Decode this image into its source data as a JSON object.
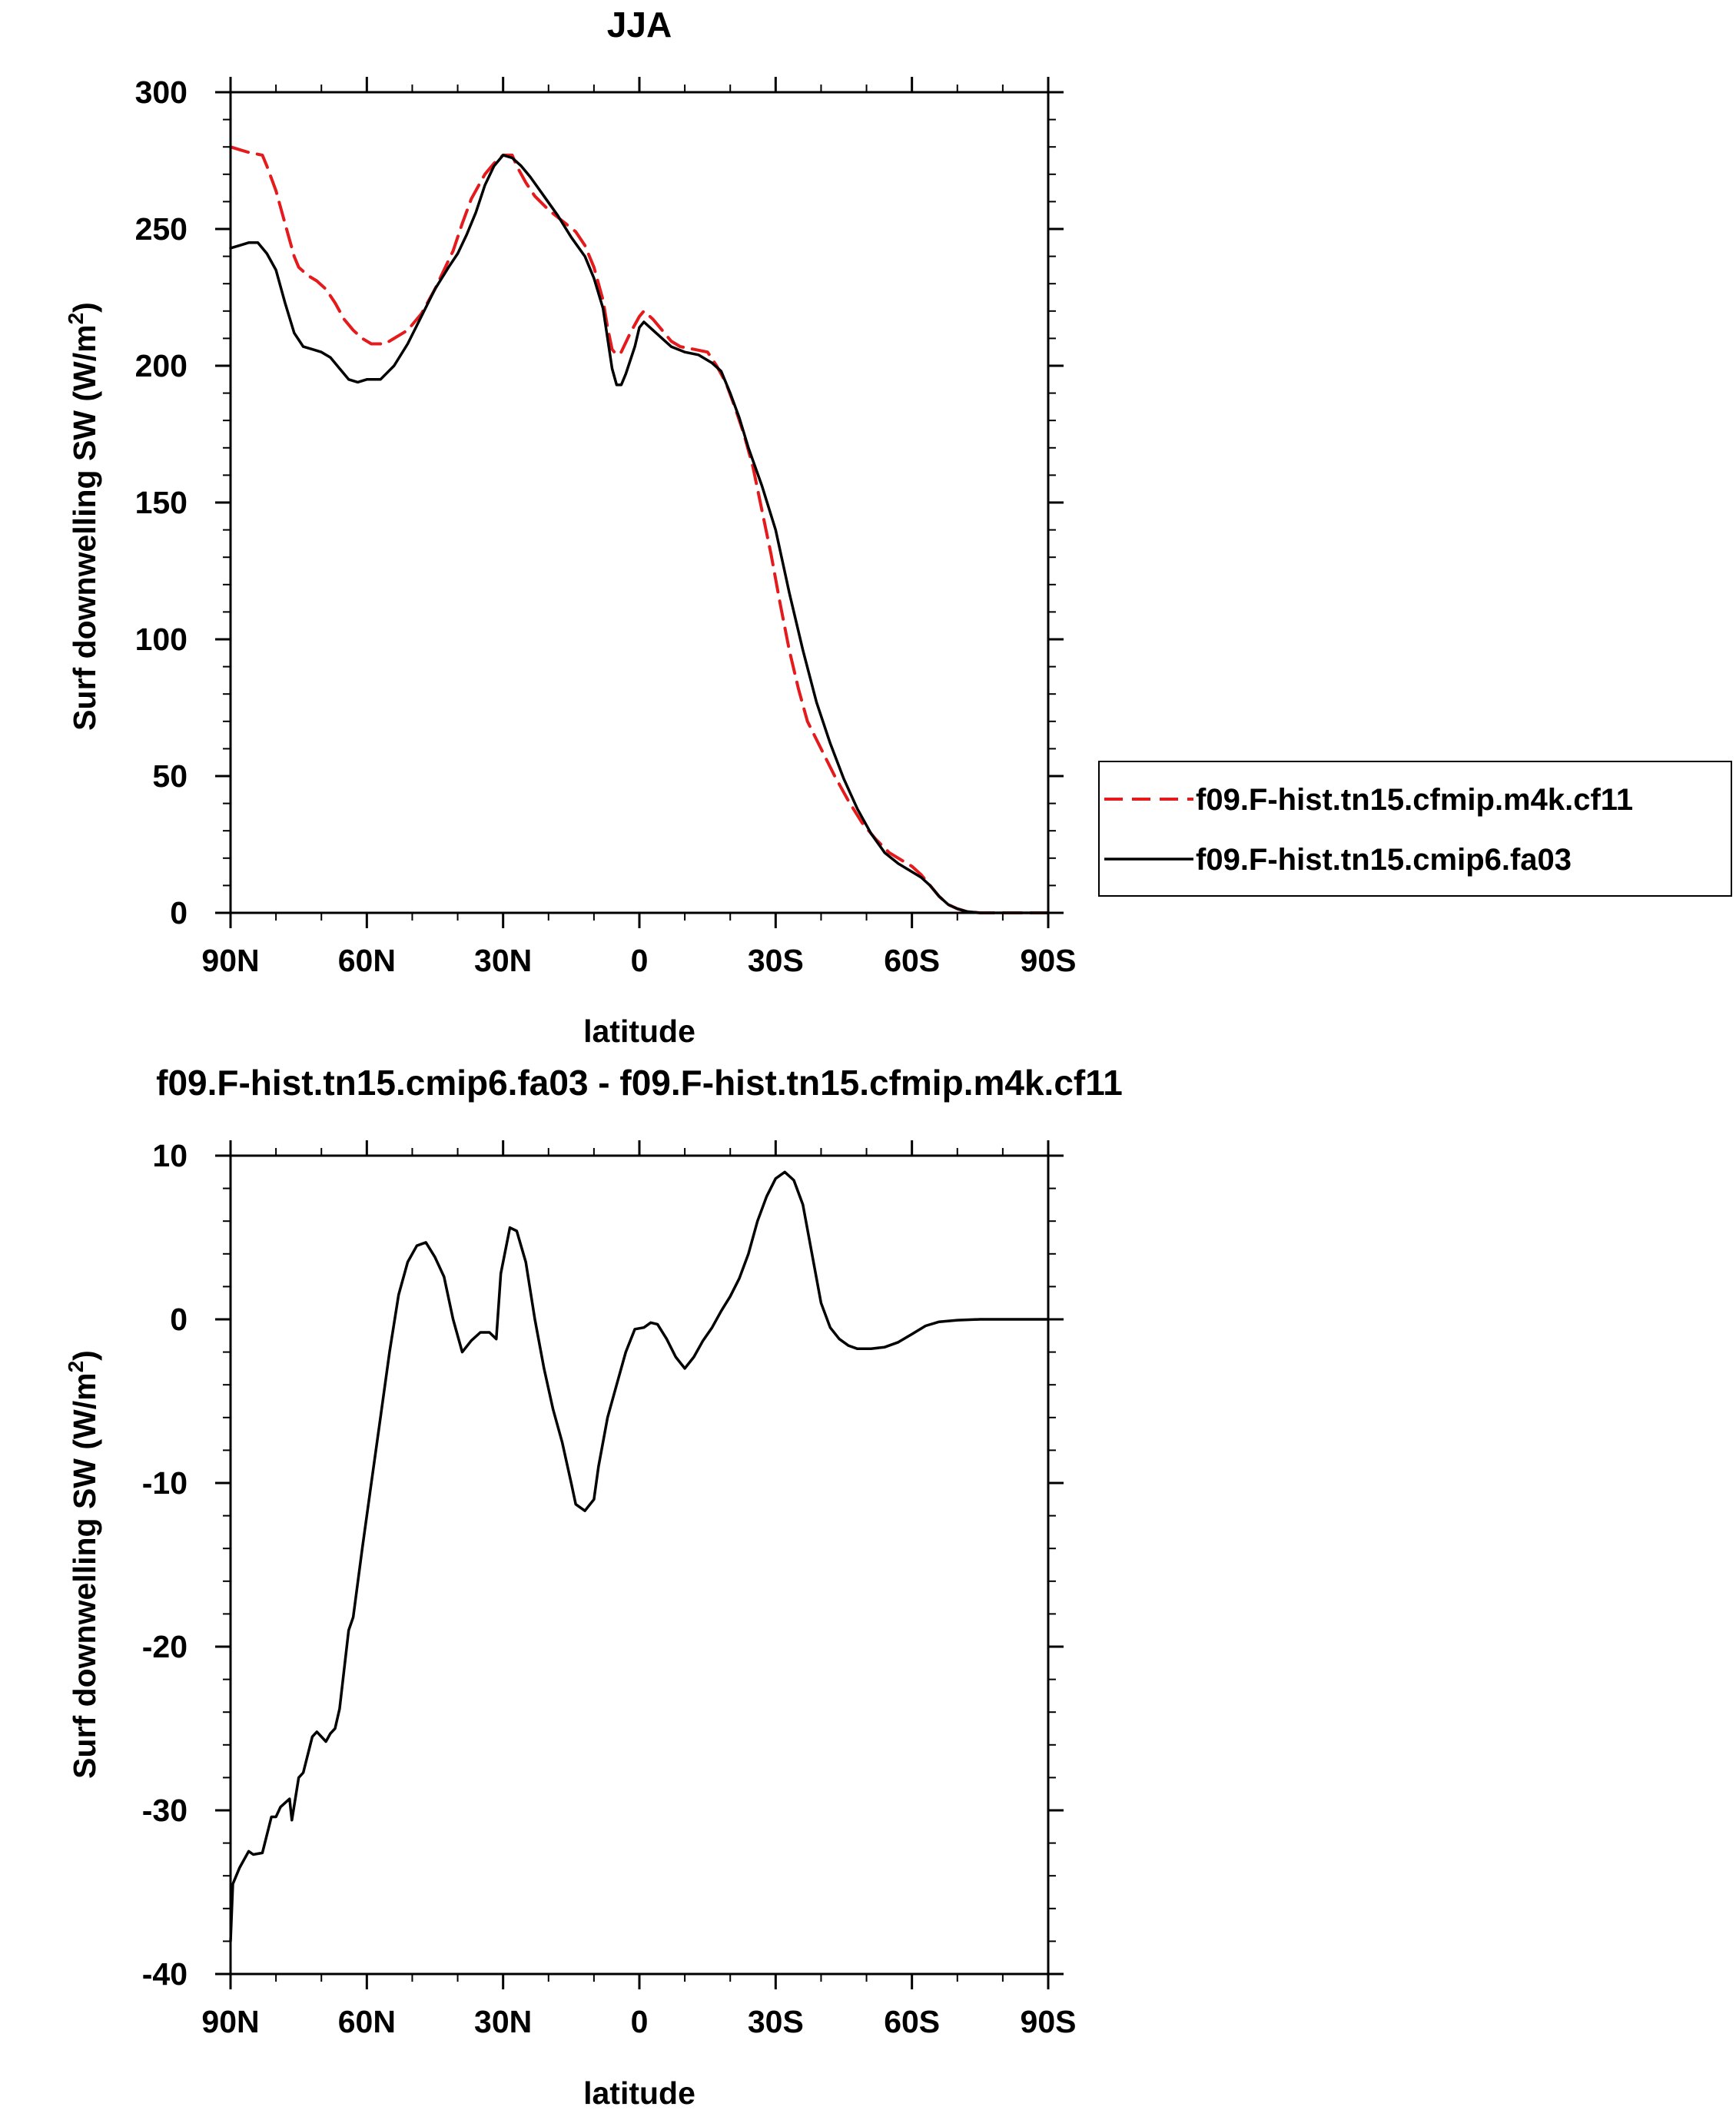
{
  "chart_data": [
    {
      "type": "line",
      "title": "JJA",
      "xlabel": "latitude",
      "ylabel": "Surf downwelling SW (W/m",
      "ylabel_sup": "2",
      "ylabel_close": ")",
      "xlim": [
        90,
        -90
      ],
      "ylim": [
        0,
        300
      ],
      "xticks": [
        90,
        60,
        30,
        0,
        -30,
        -60,
        -90
      ],
      "xtick_labels": [
        "90N",
        "60N",
        "30N",
        "0",
        "30S",
        "60S",
        "90S"
      ],
      "yticks": [
        0,
        50,
        100,
        150,
        200,
        250,
        300
      ],
      "ytick_labels": [
        "0",
        "50",
        "100",
        "150",
        "200",
        "250",
        "300"
      ],
      "legend_position": "outside-right",
      "series": [
        {
          "name": "f09.F-hist.tn15.cfmip.m4k.cf11",
          "color": "#e41a1c",
          "dash": "dashed",
          "points": [
            [
              90,
              280
            ],
            [
              88,
              279
            ],
            [
              86,
              278
            ],
            [
              83,
              277
            ],
            [
              82,
              273
            ],
            [
              80,
              264
            ],
            [
              78,
              252
            ],
            [
              76,
              240
            ],
            [
              75,
              236
            ],
            [
              73,
              233
            ],
            [
              71,
              231
            ],
            [
              69,
              228
            ],
            [
              67,
              223
            ],
            [
              65,
              217
            ],
            [
              63,
              213
            ],
            [
              61,
              210
            ],
            [
              59,
              208
            ],
            [
              56,
              208
            ],
            [
              53,
              211
            ],
            [
              51,
              213
            ],
            [
              48,
              219
            ],
            [
              45,
              228
            ],
            [
              43,
              235
            ],
            [
              41,
              242
            ],
            [
              39,
              252
            ],
            [
              37,
              261
            ],
            [
              34,
              270
            ],
            [
              32,
              274
            ],
            [
              30,
              277
            ],
            [
              28,
              277
            ],
            [
              27,
              273
            ],
            [
              25,
              267
            ],
            [
              23,
              262
            ],
            [
              20,
              257
            ],
            [
              17,
              253
            ],
            [
              14,
              249
            ],
            [
              12,
              244
            ],
            [
              10,
              236
            ],
            [
              8,
              224
            ],
            [
              7,
              214
            ],
            [
              6,
              206
            ],
            [
              5,
              204
            ],
            [
              4,
              205
            ],
            [
              2,
              212
            ],
            [
              0,
              218
            ],
            [
              -1,
              220
            ],
            [
              -3,
              217
            ],
            [
              -5,
              213
            ],
            [
              -7,
              209
            ],
            [
              -9,
              207
            ],
            [
              -12,
              206
            ],
            [
              -15,
              205
            ],
            [
              -17,
              200
            ],
            [
              -19,
              194
            ],
            [
              -21,
              185
            ],
            [
              -23,
              175
            ],
            [
              -25,
              163
            ],
            [
              -27,
              147
            ],
            [
              -29,
              131
            ],
            [
              -31,
              113
            ],
            [
              -33,
              96
            ],
            [
              -35,
              82
            ],
            [
              -37,
              70
            ],
            [
              -40,
              60
            ],
            [
              -43,
              50
            ],
            [
              -46,
              41
            ],
            [
              -49,
              33
            ],
            [
              -52,
              27
            ],
            [
              -55,
              22
            ],
            [
              -58,
              19
            ],
            [
              -60,
              17
            ],
            [
              -62,
              14
            ],
            [
              -64,
              10
            ],
            [
              -66,
              6
            ],
            [
              -68,
              3
            ],
            [
              -70,
              1.5
            ],
            [
              -72,
              0.5
            ],
            [
              -75,
              0
            ],
            [
              -90,
              0
            ]
          ]
        },
        {
          "name": "f09.F-hist.tn15.cmip6.fa03",
          "color": "#000000",
          "dash": "solid",
          "points": [
            [
              90,
              243
            ],
            [
              88,
              244
            ],
            [
              86,
              245
            ],
            [
              84,
              245
            ],
            [
              82,
              241
            ],
            [
              80,
              235
            ],
            [
              78,
              223
            ],
            [
              76,
              212
            ],
            [
              74,
              207
            ],
            [
              72,
              206
            ],
            [
              70,
              205
            ],
            [
              68,
              203
            ],
            [
              66,
              199
            ],
            [
              64,
              195
            ],
            [
              62,
              194
            ],
            [
              60,
              195
            ],
            [
              57,
              195
            ],
            [
              54,
              200
            ],
            [
              51,
              208
            ],
            [
              48,
              218
            ],
            [
              45,
              228
            ],
            [
              42,
              236
            ],
            [
              40,
              241
            ],
            [
              38,
              248
            ],
            [
              36,
              256
            ],
            [
              34,
              266
            ],
            [
              32,
              273
            ],
            [
              30,
              277
            ],
            [
              28,
              276
            ],
            [
              26,
              273
            ],
            [
              24,
              269
            ],
            [
              21,
              262
            ],
            [
              18,
              255
            ],
            [
              15,
              247
            ],
            [
              12,
              240
            ],
            [
              10,
              232
            ],
            [
              8,
              221
            ],
            [
              7,
              210
            ],
            [
              6,
              199
            ],
            [
              5,
              193
            ],
            [
              4,
              193
            ],
            [
              3,
              197
            ],
            [
              1,
              207
            ],
            [
              0,
              214
            ],
            [
              -1,
              216
            ],
            [
              -3,
              213
            ],
            [
              -5,
              210
            ],
            [
              -7,
              207
            ],
            [
              -10,
              205
            ],
            [
              -13,
              204
            ],
            [
              -16,
              201
            ],
            [
              -18,
              198
            ],
            [
              -20,
              190
            ],
            [
              -22,
              181
            ],
            [
              -24,
              170
            ],
            [
              -27,
              156
            ],
            [
              -30,
              140
            ],
            [
              -33,
              117
            ],
            [
              -36,
              96
            ],
            [
              -39,
              77
            ],
            [
              -42,
              62
            ],
            [
              -45,
              49
            ],
            [
              -48,
              38
            ],
            [
              -51,
              29
            ],
            [
              -54,
              22
            ],
            [
              -57,
              18
            ],
            [
              -60,
              15
            ],
            [
              -62,
              13
            ],
            [
              -64,
              10
            ],
            [
              -66,
              6
            ],
            [
              -68,
              3
            ],
            [
              -70,
              1.5
            ],
            [
              -72,
              0.5
            ],
            [
              -75,
              0
            ],
            [
              -90,
              0
            ]
          ]
        }
      ]
    },
    {
      "type": "line",
      "title": "f09.F-hist.tn15.cmip6.fa03 - f09.F-hist.tn15.cfmip.m4k.cf11",
      "xlabel": "latitude",
      "ylabel": "Surf downwelling SW (W/m",
      "ylabel_sup": "2",
      "ylabel_close": ")",
      "xlim": [
        90,
        -90
      ],
      "ylim": [
        -40,
        10
      ],
      "xticks": [
        90,
        60,
        30,
        0,
        -30,
        -60,
        -90
      ],
      "xtick_labels": [
        "90N",
        "60N",
        "30N",
        "0",
        "30S",
        "60S",
        "90S"
      ],
      "yticks": [
        -40,
        -30,
        -20,
        -10,
        0,
        10
      ],
      "ytick_labels": [
        "-40",
        "-30",
        "-20",
        "-10",
        "0",
        "10"
      ],
      "series": [
        {
          "color": "#000000",
          "dash": "solid",
          "points": [
            [
              90,
              -38
            ],
            [
              89.5,
              -34.5
            ],
            [
              88,
              -33.5
            ],
            [
              86,
              -32.5
            ],
            [
              85,
              -32.7
            ],
            [
              83,
              -32.6
            ],
            [
              81,
              -30.4
            ],
            [
              80,
              -30.4
            ],
            [
              79,
              -29.8
            ],
            [
              77,
              -29.3
            ],
            [
              76.5,
              -30.6
            ],
            [
              75,
              -28
            ],
            [
              74,
              -27.7
            ],
            [
              72,
              -25.5
            ],
            [
              71,
              -25.2
            ],
            [
              69,
              -25.8
            ],
            [
              68,
              -25.3
            ],
            [
              67,
              -25
            ],
            [
              66,
              -23.8
            ],
            [
              64,
              -19
            ],
            [
              63,
              -18.2
            ],
            [
              61,
              -14
            ],
            [
              59,
              -10
            ],
            [
              57,
              -6
            ],
            [
              55,
              -2
            ],
            [
              53,
              1.5
            ],
            [
              51,
              3.5
            ],
            [
              49,
              4.5
            ],
            [
              47,
              4.7
            ],
            [
              45,
              3.8
            ],
            [
              43,
              2.6
            ],
            [
              41,
              0
            ],
            [
              39,
              -2
            ],
            [
              37,
              -1.3
            ],
            [
              35,
              -0.8
            ],
            [
              33,
              -0.8
            ],
            [
              31.5,
              -1.2
            ],
            [
              30.5,
              2.8
            ],
            [
              28.5,
              5.6
            ],
            [
              27,
              5.4
            ],
            [
              25,
              3.5
            ],
            [
              23,
              0
            ],
            [
              21,
              -3
            ],
            [
              19,
              -5.5
            ],
            [
              17,
              -7.5
            ],
            [
              15,
              -10
            ],
            [
              14,
              -11.3
            ],
            [
              12,
              -11.7
            ],
            [
              10,
              -11
            ],
            [
              9,
              -9
            ],
            [
              7,
              -6
            ],
            [
              5,
              -4
            ],
            [
              3,
              -2
            ],
            [
              1,
              -0.6
            ],
            [
              -1,
              -0.5
            ],
            [
              -2.5,
              -0.2
            ],
            [
              -4,
              -0.3
            ],
            [
              -6,
              -1.2
            ],
            [
              -8,
              -2.3
            ],
            [
              -10,
              -3
            ],
            [
              -12,
              -2.3
            ],
            [
              -14,
              -1.3
            ],
            [
              -16,
              -0.5
            ],
            [
              -18,
              0.5
            ],
            [
              -20,
              1.4
            ],
            [
              -22,
              2.5
            ],
            [
              -24,
              4
            ],
            [
              -26,
              6
            ],
            [
              -28,
              7.5
            ],
            [
              -30,
              8.6
            ],
            [
              -32,
              9
            ],
            [
              -34,
              8.5
            ],
            [
              -36,
              7
            ],
            [
              -38,
              4
            ],
            [
              -40,
              1
            ],
            [
              -42,
              -0.5
            ],
            [
              -44,
              -1.2
            ],
            [
              -46,
              -1.6
            ],
            [
              -48,
              -1.8
            ],
            [
              -51,
              -1.8
            ],
            [
              -54,
              -1.7
            ],
            [
              -57,
              -1.4
            ],
            [
              -60,
              -0.9
            ],
            [
              -63,
              -0.4
            ],
            [
              -66,
              -0.15
            ],
            [
              -70,
              -0.05
            ],
            [
              -75,
              0
            ],
            [
              -90,
              0
            ]
          ]
        }
      ]
    }
  ]
}
